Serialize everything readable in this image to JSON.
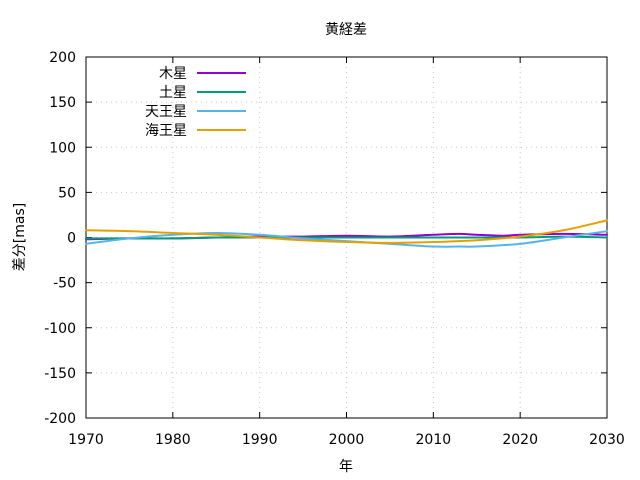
{
  "chart_data": {
    "type": "line",
    "title": "黄経差",
    "xlabel": "年",
    "ylabel": "差分[mas]",
    "xlim": [
      1970,
      2030
    ],
    "ylim": [
      -200,
      200
    ],
    "xticks": [
      1970,
      1980,
      1990,
      2000,
      2010,
      2020,
      2030
    ],
    "yticks": [
      -200,
      -150,
      -100,
      -50,
      0,
      50,
      100,
      150,
      200
    ],
    "grid": true,
    "legend_position": "top-left",
    "series": [
      {
        "name": "木星",
        "color": "#9400d3",
        "x": [
          1970,
          1975,
          1980,
          1985,
          1990,
          1995,
          2000,
          2005,
          2010,
          2013,
          2015,
          2018,
          2020,
          2025,
          2030
        ],
        "y": [
          -2,
          -1,
          -1,
          0,
          1,
          1,
          2,
          1,
          3,
          4,
          3,
          2,
          3,
          4,
          3
        ]
      },
      {
        "name": "土星",
        "color": "#009e73",
        "x": [
          1970,
          1975,
          1980,
          1985,
          1990,
          1995,
          2000,
          2005,
          2010,
          2015,
          2020,
          2025,
          2030
        ],
        "y": [
          -1,
          -1,
          -1,
          0,
          0,
          0,
          0,
          0,
          0,
          0,
          0,
          1,
          0
        ]
      },
      {
        "name": "天王星",
        "color": "#56b4e9",
        "x": [
          1970,
          1975,
          1980,
          1985,
          1990,
          1995,
          2000,
          2005,
          2010,
          2013,
          2015,
          2020,
          2025,
          2030
        ],
        "y": [
          -7,
          -1,
          3,
          5,
          3,
          -1,
          -4,
          -7,
          -10,
          -10,
          -10,
          -7,
          0,
          7
        ]
      },
      {
        "name": "海王星",
        "color": "#e69f00",
        "x": [
          1970,
          1975,
          1980,
          1985,
          1990,
          1995,
          2000,
          2005,
          2010,
          2015,
          2020,
          2025,
          2030
        ],
        "y": [
          8,
          7,
          5,
          3,
          0,
          -3,
          -5,
          -6,
          -5,
          -3,
          1,
          8,
          19
        ]
      }
    ]
  }
}
